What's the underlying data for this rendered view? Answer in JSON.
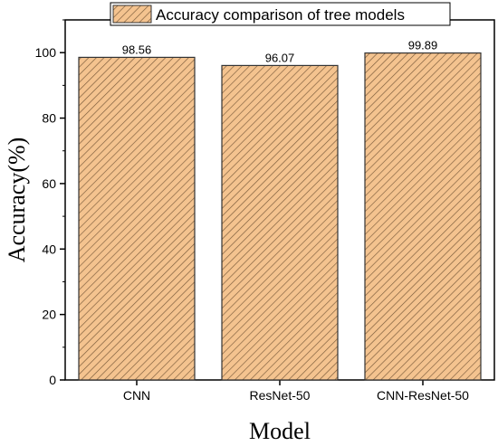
{
  "chart_data": {
    "type": "bar",
    "categories": [
      "CNN",
      "ResNet-50",
      "CNN-ResNet-50"
    ],
    "series": [
      {
        "name": "Accuracy comparison of tree models",
        "values": [
          98.56,
          96.07,
          99.89
        ]
      }
    ],
    "data_labels": [
      "98.56",
      "96.07",
      "99.89"
    ],
    "xlabel": "Model",
    "ylabel": "Accuracy(%)",
    "ylim": [
      0,
      110
    ],
    "yticks": [
      0,
      20,
      40,
      60,
      80,
      100
    ],
    "grid": false,
    "legend_position": "top-center",
    "colors": {
      "bar_fill": "#f4c38f",
      "hatch": "#7a5a3a",
      "bar_edge": "#333333",
      "axis": "#000000"
    }
  }
}
